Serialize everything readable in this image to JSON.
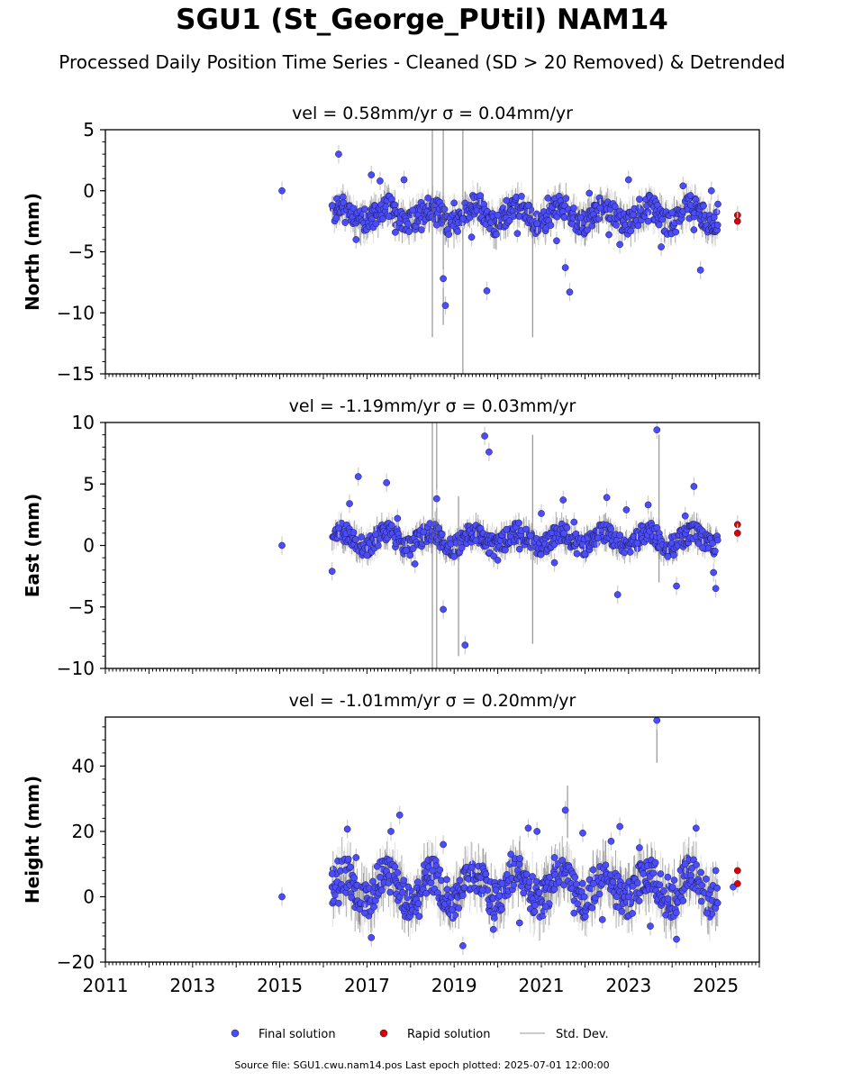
{
  "title": "SGU1 (St_George_PUtil) NAM14",
  "subtitle": "Processed Daily Position Time Series - Cleaned (SD > 20 Removed) & Detrended",
  "footer": "Source file: SGU1.cwu.nam14.pos  Last epoch plotted: 2025-07-01 12:00:00",
  "colors": {
    "final": "#4c4cff",
    "rapid": "#e00000",
    "stddev": "#cccccc",
    "stddev_dense": "#666666"
  },
  "legend": [
    {
      "label": "Final solution",
      "color": "#4c4cff",
      "kind": "dot"
    },
    {
      "label": "Rapid solution",
      "color": "#e00000",
      "kind": "dot"
    },
    {
      "label": "Std. Dev.",
      "color": "#cccccc",
      "kind": "line"
    }
  ],
  "chart_data": [
    {
      "type": "scatter",
      "panel": "north",
      "title": "vel = 0.58mm/yr   σ = 0.04mm/yr",
      "ylabel": "North (mm)",
      "xlim": [
        2011.0,
        2026.0
      ],
      "ylim": [
        -15,
        5
      ],
      "yticks": [
        -15,
        -10,
        -5,
        0,
        5
      ],
      "xticks": [
        2011,
        2013,
        2015,
        2017,
        2019,
        2021,
        2023,
        2025
      ],
      "grid": false,
      "series": [
        {
          "name": "Final solution",
          "points": [
            [
              2015.05,
              0.0
            ],
            [
              2016.2,
              -1.2
            ],
            [
              2016.35,
              3.0
            ],
            [
              2016.5,
              -2.6
            ],
            [
              2016.75,
              -4.0
            ],
            [
              2016.95,
              -1.5
            ],
            [
              2017.1,
              1.3
            ],
            [
              2017.3,
              0.8
            ],
            [
              2017.5,
              -2.1
            ],
            [
              2017.65,
              -3.4
            ],
            [
              2017.85,
              0.9
            ],
            [
              2018.05,
              -1.6
            ],
            [
              2018.25,
              -3.2
            ],
            [
              2018.4,
              -0.6
            ],
            [
              2018.6,
              -2.8
            ],
            [
              2018.75,
              -7.2
            ],
            [
              2018.8,
              -9.4
            ],
            [
              2019.0,
              -1.0
            ],
            [
              2019.2,
              -2.3
            ],
            [
              2019.4,
              -3.8
            ],
            [
              2019.6,
              -0.4
            ],
            [
              2019.75,
              -8.2
            ],
            [
              2020.0,
              -2.0
            ],
            [
              2020.2,
              -0.8
            ],
            [
              2020.45,
              -3.5
            ],
            [
              2020.7,
              -1.2
            ],
            [
              2020.9,
              -2.7
            ],
            [
              2021.15,
              -0.6
            ],
            [
              2021.35,
              -4.1
            ],
            [
              2021.55,
              -6.3
            ],
            [
              2021.65,
              -8.3
            ],
            [
              2021.9,
              -2.2
            ],
            [
              2022.1,
              -0.2
            ],
            [
              2022.35,
              -1.4
            ],
            [
              2022.55,
              -3.6
            ],
            [
              2022.8,
              -4.4
            ],
            [
              2023.0,
              0.9
            ],
            [
              2023.25,
              -0.7
            ],
            [
              2023.45,
              -2.5
            ],
            [
              2023.75,
              -4.6
            ],
            [
              2024.0,
              -1.8
            ],
            [
              2024.25,
              0.4
            ],
            [
              2024.5,
              -3.2
            ],
            [
              2024.65,
              -6.5
            ],
            [
              2024.9,
              0.0
            ],
            [
              2025.05,
              -1.1
            ]
          ]
        },
        {
          "name": "Rapid solution",
          "points": [
            [
              2025.5,
              -2.0
            ],
            [
              2025.5,
              -2.5
            ]
          ]
        }
      ],
      "envelope": {
        "start": 2016.2,
        "end": 2025.05,
        "mean": -2.0,
        "amp": 1.2
      },
      "spikes": [
        [
          2018.5,
          -12,
          5
        ],
        [
          2018.75,
          -11,
          5
        ],
        [
          2019.2,
          -15,
          5
        ],
        [
          2020.8,
          -12,
          5
        ]
      ]
    },
    {
      "type": "scatter",
      "panel": "east",
      "title": "vel = -1.19mm/yr   σ = 0.03mm/yr",
      "ylabel": "East (mm)",
      "xlim": [
        2011.0,
        2026.0
      ],
      "ylim": [
        -10,
        10
      ],
      "yticks": [
        -10,
        -5,
        0,
        5,
        10
      ],
      "xticks": [
        2011,
        2013,
        2015,
        2017,
        2019,
        2021,
        2023,
        2025
      ],
      "grid": false,
      "series": [
        {
          "name": "Final solution",
          "points": [
            [
              2015.05,
              0.0
            ],
            [
              2016.2,
              -2.1
            ],
            [
              2016.35,
              1.4
            ],
            [
              2016.6,
              3.4
            ],
            [
              2016.8,
              5.6
            ],
            [
              2017.0,
              -0.8
            ],
            [
              2017.2,
              0.9
            ],
            [
              2017.45,
              5.1
            ],
            [
              2017.7,
              2.2
            ],
            [
              2017.9,
              -0.4
            ],
            [
              2018.1,
              -1.5
            ],
            [
              2018.3,
              1.1
            ],
            [
              2018.6,
              3.8
            ],
            [
              2018.75,
              -5.2
            ],
            [
              2019.0,
              -0.9
            ],
            [
              2019.25,
              -8.1
            ],
            [
              2019.5,
              0.4
            ],
            [
              2019.7,
              8.9
            ],
            [
              2019.8,
              7.6
            ],
            [
              2020.0,
              -1.2
            ],
            [
              2020.2,
              1.3
            ],
            [
              2020.5,
              -0.3
            ],
            [
              2020.75,
              0.8
            ],
            [
              2021.0,
              2.6
            ],
            [
              2021.3,
              -1.4
            ],
            [
              2021.5,
              3.7
            ],
            [
              2021.75,
              1.9
            ],
            [
              2022.0,
              -0.7
            ],
            [
              2022.3,
              0.6
            ],
            [
              2022.5,
              3.9
            ],
            [
              2022.75,
              -4.0
            ],
            [
              2022.95,
              2.9
            ],
            [
              2023.2,
              0.2
            ],
            [
              2023.45,
              3.3
            ],
            [
              2023.65,
              9.4
            ],
            [
              2023.9,
              -0.9
            ],
            [
              2024.1,
              -3.3
            ],
            [
              2024.3,
              2.4
            ],
            [
              2024.5,
              4.8
            ],
            [
              2024.7,
              -0.2
            ],
            [
              2024.95,
              -2.2
            ],
            [
              2025.0,
              -3.5
            ]
          ]
        },
        {
          "name": "Rapid solution",
          "points": [
            [
              2025.5,
              1.7
            ],
            [
              2025.5,
              1.0
            ]
          ]
        }
      ],
      "envelope": {
        "start": 2016.2,
        "end": 2025.05,
        "mean": 0.5,
        "amp": 1.0
      },
      "spikes": [
        [
          2018.5,
          -10,
          10
        ],
        [
          2018.6,
          -10,
          10
        ],
        [
          2019.1,
          -9,
          4
        ],
        [
          2020.8,
          -8,
          9
        ],
        [
          2023.7,
          -3,
          9
        ]
      ]
    },
    {
      "type": "scatter",
      "panel": "height",
      "title": "vel = -1.01mm/yr   σ = 0.20mm/yr",
      "ylabel": "Height (mm)",
      "xlim": [
        2011.0,
        2026.0
      ],
      "ylim": [
        -20,
        55
      ],
      "yticks": [
        -20,
        0,
        20,
        40
      ],
      "xticks": [
        2011,
        2013,
        2015,
        2017,
        2019,
        2021,
        2023,
        2025
      ],
      "grid": false,
      "series": [
        {
          "name": "Final solution",
          "points": [
            [
              2015.05,
              0.0
            ],
            [
              2016.2,
              7.0
            ],
            [
              2016.35,
              -2.0
            ],
            [
              2016.55,
              20.7
            ],
            [
              2016.75,
              12.0
            ],
            [
              2016.95,
              -5.0
            ],
            [
              2017.1,
              -12.5
            ],
            [
              2017.3,
              6.0
            ],
            [
              2017.55,
              20.0
            ],
            [
              2017.75,
              25.0
            ],
            [
              2017.95,
              3.0
            ],
            [
              2018.2,
              -6.0
            ],
            [
              2018.5,
              8.0
            ],
            [
              2018.75,
              16.0
            ],
            [
              2018.95,
              -4.0
            ],
            [
              2019.2,
              -15.0
            ],
            [
              2019.4,
              9.0
            ],
            [
              2019.65,
              2.0
            ],
            [
              2019.9,
              -10.0
            ],
            [
              2020.1,
              4.0
            ],
            [
              2020.3,
              13.0
            ],
            [
              2020.5,
              -8.0
            ],
            [
              2020.7,
              21.0
            ],
            [
              2020.9,
              20.0
            ],
            [
              2021.1,
              -3.0
            ],
            [
              2021.3,
              12.0
            ],
            [
              2021.55,
              26.5
            ],
            [
              2021.75,
              -5.0
            ],
            [
              2021.95,
              19.5
            ],
            [
              2022.2,
              4.0
            ],
            [
              2022.4,
              -7.0
            ],
            [
              2022.6,
              17.0
            ],
            [
              2022.8,
              21.5
            ],
            [
              2023.0,
              0.0
            ],
            [
              2023.25,
              15.0
            ],
            [
              2023.5,
              -9.0
            ],
            [
              2023.65,
              54.0
            ],
            [
              2023.9,
              6.0
            ],
            [
              2024.1,
              -13.0
            ],
            [
              2024.3,
              10.0
            ],
            [
              2024.55,
              21.0
            ],
            [
              2024.8,
              -5.0
            ],
            [
              2025.0,
              8.0
            ],
            [
              2025.4,
              3.0
            ]
          ]
        },
        {
          "name": "Rapid solution",
          "points": [
            [
              2025.5,
              8.0
            ],
            [
              2025.5,
              4.0
            ]
          ]
        }
      ],
      "envelope": {
        "start": 2016.2,
        "end": 2025.05,
        "mean": 3.0,
        "amp": 7.0
      },
      "spikes": [
        [
          2023.65,
          41,
          54
        ],
        [
          2021.6,
          18,
          34
        ]
      ]
    }
  ]
}
